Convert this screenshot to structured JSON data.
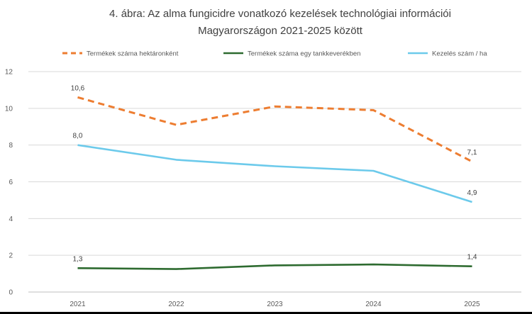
{
  "chart_data": {
    "type": "line",
    "title_line1": "4. ábra: Az alma fungicidre vonatkozó kezelések technológiai információi",
    "title_line2": "Magyarországon 2021-2025 között",
    "categories": [
      "2021",
      "2022",
      "2023",
      "2024",
      "2025"
    ],
    "ylim": [
      0,
      12
    ],
    "yticks": [
      "0",
      "2",
      "4",
      "6",
      "8",
      "10",
      "12"
    ],
    "grid": true,
    "legend_position": "top",
    "series": [
      {
        "name": "Termékek száma hektáronként",
        "values": [
          10.6,
          9.1,
          10.1,
          9.9,
          7.1
        ],
        "color": "#ED7D31",
        "style": "dashed",
        "labels": [
          "10,6",
          "",
          "",
          "",
          "7,1"
        ]
      },
      {
        "name": "Termékek száma egy tankkeverékben",
        "values": [
          1.3,
          1.25,
          1.45,
          1.5,
          1.4
        ],
        "color": "#2E6B30",
        "style": "solid",
        "labels": [
          "1,3",
          "",
          "",
          "",
          "1,4"
        ]
      },
      {
        "name": "Kezelés szám / ha",
        "values": [
          8.0,
          7.2,
          6.85,
          6.6,
          4.9
        ],
        "color": "#6CCAEB",
        "style": "solid",
        "labels": [
          "8,0",
          "",
          "",
          "",
          "4,9"
        ]
      }
    ]
  }
}
